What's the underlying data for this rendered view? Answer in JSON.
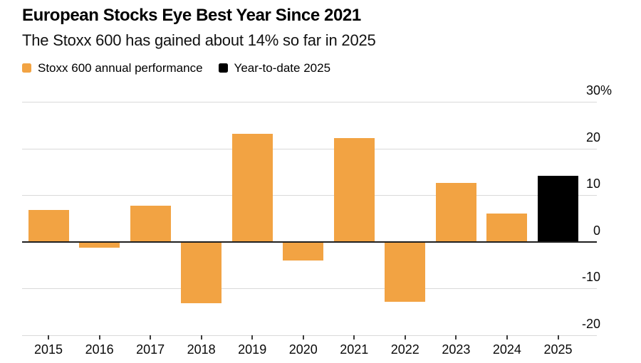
{
  "chart_data": {
    "type": "bar",
    "title": "European Stocks Eye Best Year Since 2021",
    "subtitle": "The Stoxx 600 has gained about 14% so far in 2025",
    "legend": [
      {
        "label": "Stoxx 600 annual performance",
        "color": "#F2A343"
      },
      {
        "label": "Year-to-date 2025",
        "color": "#000000"
      }
    ],
    "legend_position": "top-left",
    "categories": [
      "2015",
      "2016",
      "2017",
      "2018",
      "2019",
      "2020",
      "2021",
      "2022",
      "2023",
      "2024",
      "2025"
    ],
    "values": [
      6.8,
      -1.2,
      7.7,
      -13.2,
      23.2,
      -4.0,
      22.2,
      -12.9,
      12.7,
      6.0,
      14.2
    ],
    "ytd_category": "2025",
    "unit": "%",
    "ylabel": "",
    "xlabel": "",
    "ylim": [
      -20,
      30
    ],
    "y_ticks": [
      30,
      20,
      10,
      0,
      -10,
      -20
    ],
    "y_tick_labels": [
      "30%",
      "20",
      "10",
      "0",
      "-10",
      "-20"
    ],
    "grid": "horizontal",
    "axis_side": "right",
    "colors": {
      "background": "#FFFFFF",
      "gridline": "#D9D9D9",
      "zero_line": "#1F1F1F",
      "tick": "#3C3C3C",
      "text": "#000000"
    }
  }
}
